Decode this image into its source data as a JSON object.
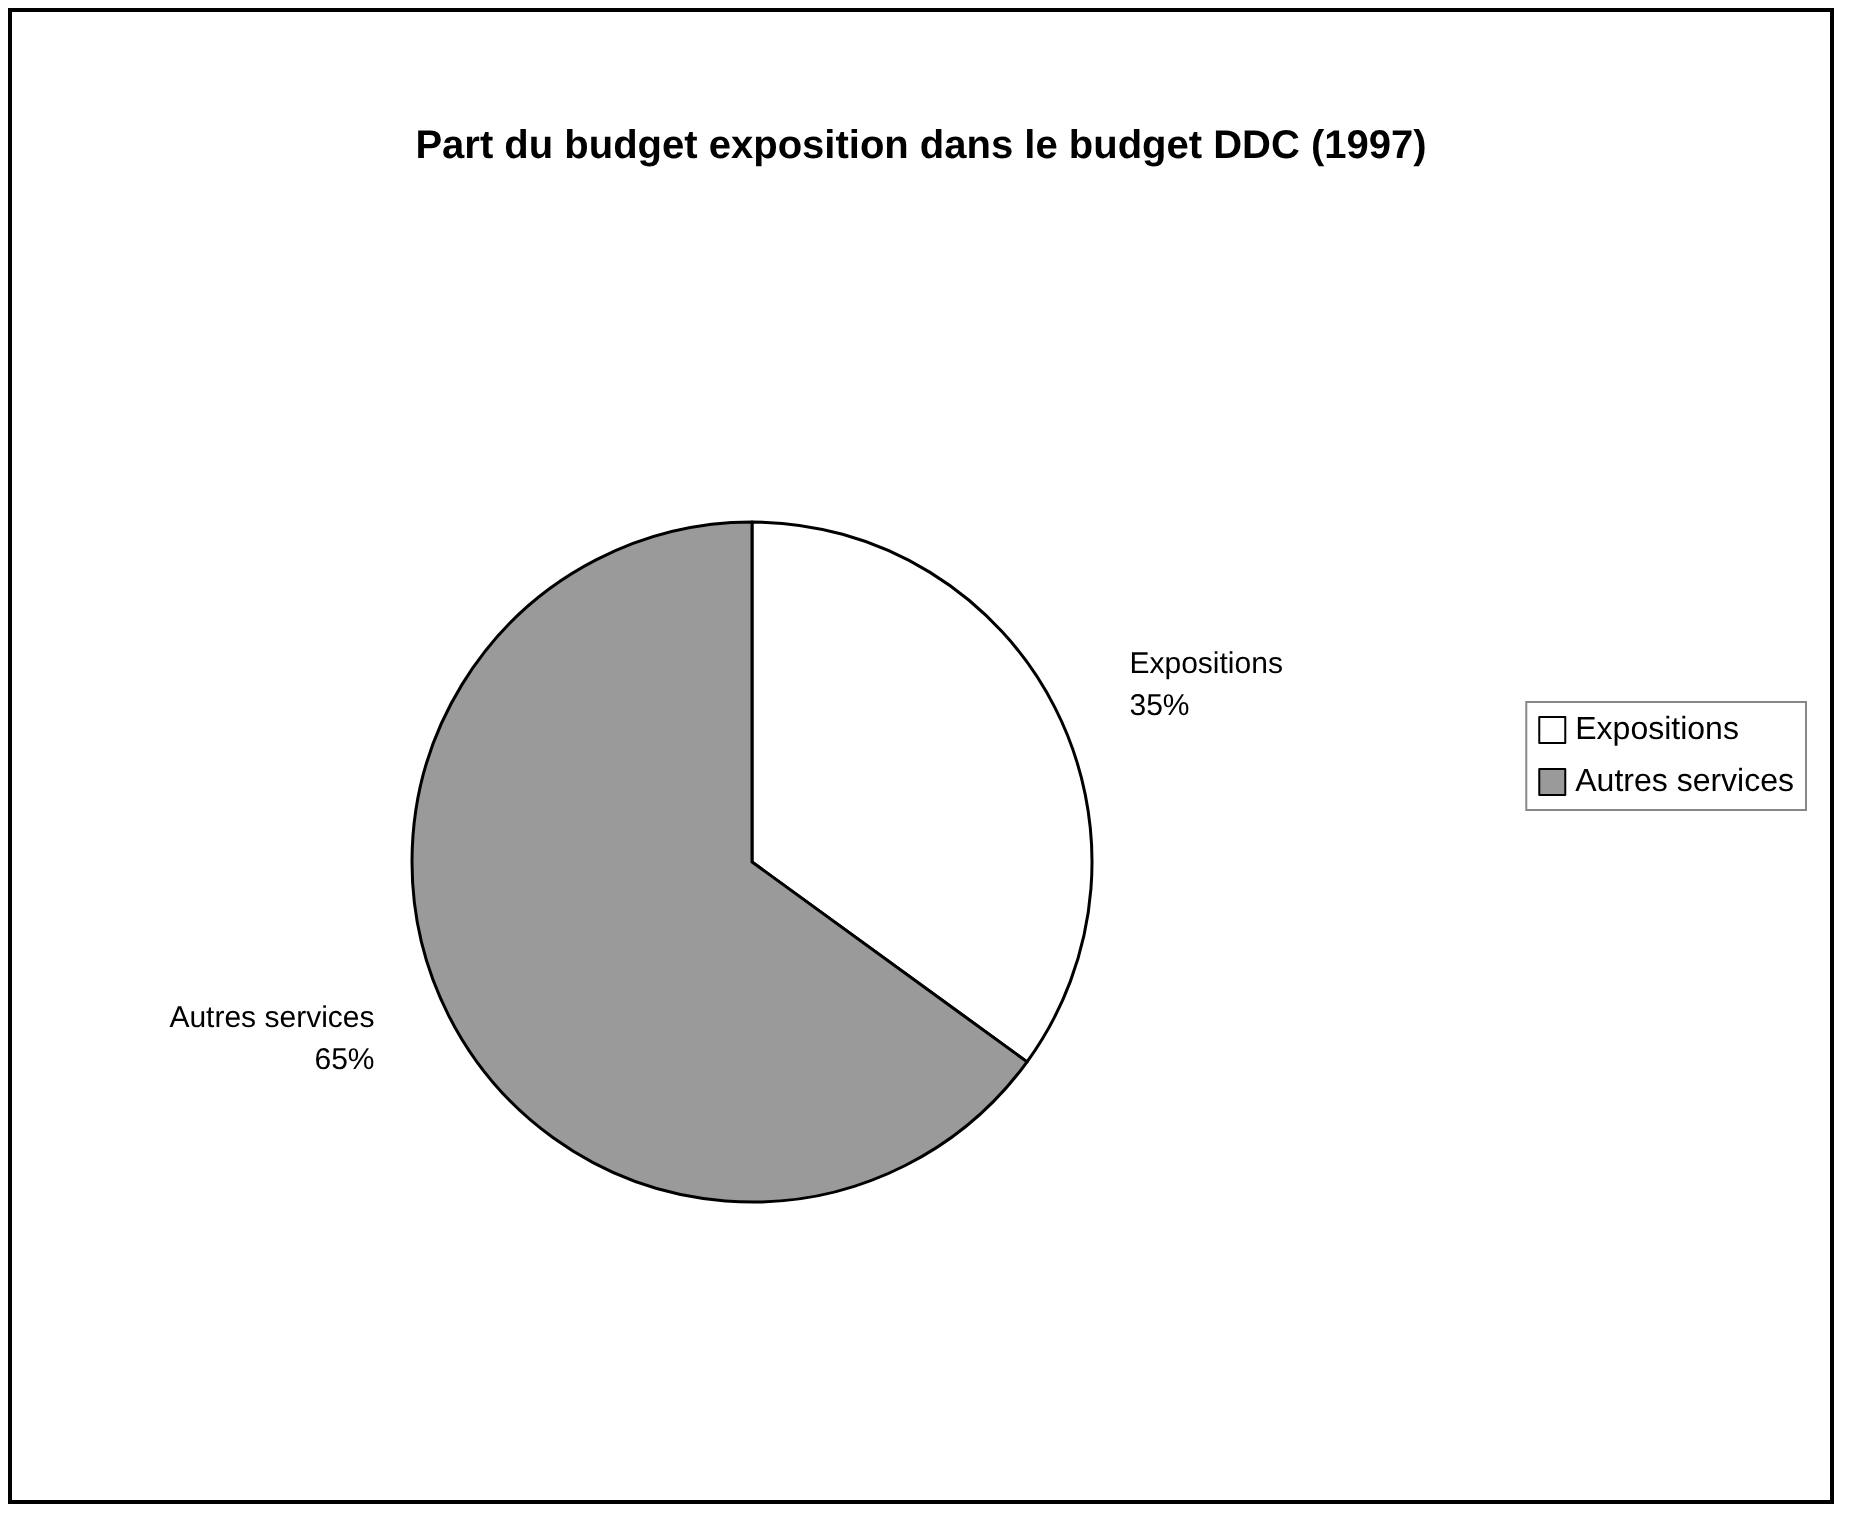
{
  "chart_data": {
    "type": "pie",
    "title": "Part du budget exposition dans le budget DDC (1997)",
    "categories": [
      "Expositions",
      "Autres services"
    ],
    "values": [
      35,
      65
    ],
    "value_labels": [
      "35%",
      "65%"
    ],
    "colors": [
      "#ffffff",
      "#9a9a9a"
    ],
    "legend": "right"
  }
}
